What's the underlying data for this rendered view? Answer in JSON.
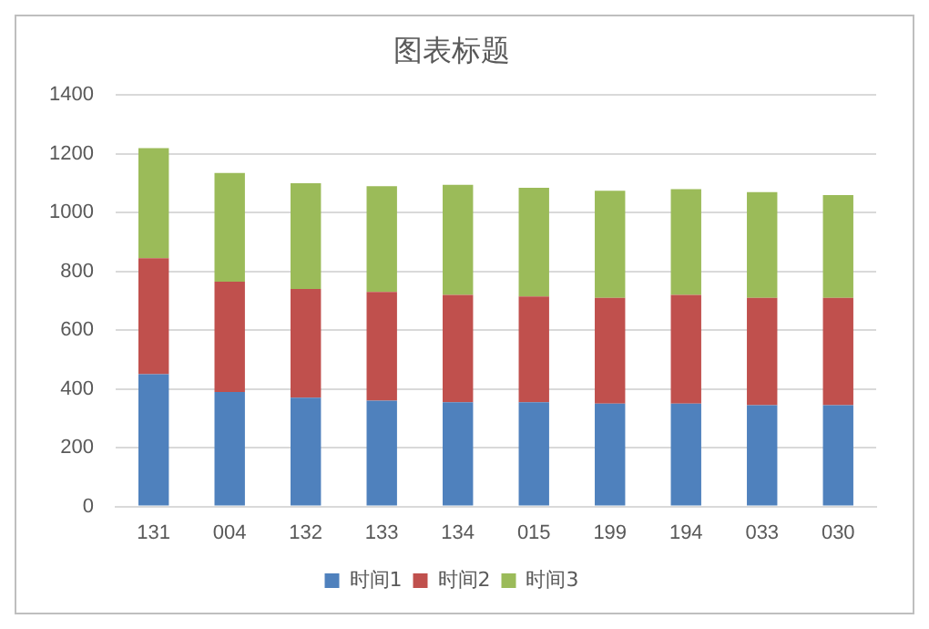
{
  "chart_data": {
    "type": "bar",
    "title": "图表标题",
    "stacked": true,
    "categories": [
      "131",
      "004",
      "132",
      "133",
      "134",
      "015",
      "199",
      "194",
      "033",
      "030"
    ],
    "series": [
      {
        "name": "时间1",
        "color": "#4f81bd",
        "values": [
          450,
          390,
          370,
          360,
          355,
          355,
          350,
          350,
          345,
          345
        ]
      },
      {
        "name": "时间2",
        "color": "#c0504d",
        "values": [
          395,
          375,
          370,
          370,
          365,
          360,
          360,
          370,
          365,
          365
        ]
      },
      {
        "name": "时间3",
        "color": "#9bbb59",
        "values": [
          375,
          370,
          360,
          360,
          375,
          370,
          365,
          360,
          360,
          350
        ]
      }
    ],
    "ylim": [
      0,
      1400
    ],
    "yticks": [
      0,
      200,
      400,
      600,
      800,
      1000,
      1200,
      1400
    ],
    "grid": "y",
    "legend": "bottom"
  }
}
